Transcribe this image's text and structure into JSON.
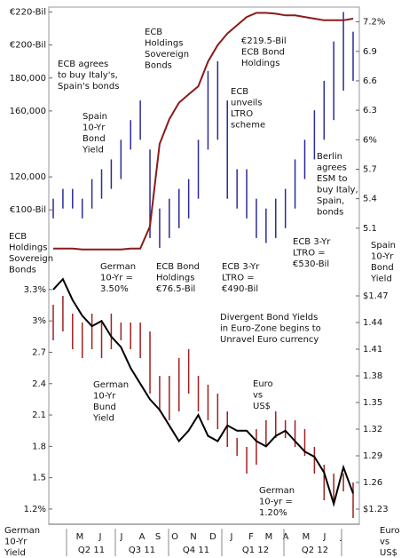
{
  "chart_data": [
    {
      "type": "range_line",
      "ylim": [
        71000,
        223000
      ],
      "yticks": [
        {
          "value": 100000,
          "label": "€100-Bil"
        },
        {
          "value": 120000,
          "label": "120,000"
        },
        {
          "value": 160000,
          "label": "160,000"
        },
        {
          "value": 180000,
          "label": "180,000"
        },
        {
          "value": 200000,
          "label": "€200-Bil"
        },
        {
          "value": 220000,
          "label": "€220-Bil"
        }
      ],
      "y2lim": [
        4.8,
        7.35
      ],
      "y2ticks": [
        5.1,
        5.4,
        5.7,
        {
          "value": 6,
          "label": "6%"
        },
        6.3,
        6.6,
        6.9,
        {
          "value": 7.2,
          "label": "7.2%"
        }
      ],
      "series": [
        {
          "color": "#2a2a9a",
          "axis": "y2",
          "lows": [
            5.2,
            5.3,
            5.3,
            5.2,
            5.3,
            5.4,
            5.5,
            5.6,
            5.9,
            6.0,
            5.0,
            4.9,
            5.0,
            5.1,
            5.2,
            5.4,
            5.9,
            6.0,
            5.4,
            5.3,
            5.2,
            5.0,
            4.95,
            5.0,
            5.1,
            5.3,
            5.6,
            5.8,
            6.0,
            6.2,
            6.5,
            6.6
          ],
          "highs": [
            5.4,
            5.5,
            5.5,
            5.4,
            5.6,
            5.7,
            5.8,
            6.0,
            6.2,
            6.4,
            5.9,
            5.3,
            5.4,
            5.5,
            5.6,
            6.0,
            6.7,
            6.8,
            6.4,
            5.7,
            5.7,
            5.4,
            5.3,
            5.4,
            5.5,
            5.8,
            6.0,
            6.3,
            6.6,
            7.0,
            7.3,
            7.1
          ]
        },
        {
          "color": "#8b1a1a",
          "values": [
            76500,
            76500,
            76500,
            76000,
            76000,
            76000,
            76000,
            76000,
            76500,
            76500,
            90000,
            140000,
            155000,
            165000,
            170000,
            175000,
            190000,
            200000,
            207000,
            212000,
            217000,
            219500,
            219500,
            219000,
            218000,
            218000,
            217000,
            216000,
            215000,
            215000,
            215000,
            216000
          ]
        }
      ]
    },
    {
      "type": "range_line",
      "ylim": [
        0.885,
        3.52
      ],
      "yticks": [
        {
          "value": 1.2,
          "label": "1.2%"
        },
        1.5,
        1.8,
        2.1,
        2.4,
        2.7,
        {
          "value": 3,
          "label": "3%"
        },
        {
          "value": 3.3,
          "label": "3.3%"
        }
      ],
      "y2lim": [
        1.193,
        1.503
      ],
      "y2ticks": [
        {
          "value": 1.23,
          "label": "$1.23"
        },
        1.26,
        1.29,
        1.32,
        1.35,
        1.38,
        1.41,
        1.44,
        {
          "value": 1.47,
          "label": "$1.47"
        }
      ],
      "series": [
        {
          "color": "#a02020",
          "axis": "y2",
          "lows": [
            1.42,
            1.43,
            1.41,
            1.4,
            1.41,
            1.4,
            1.41,
            1.42,
            1.41,
            1.4,
            1.36,
            1.34,
            1.33,
            1.34,
            1.36,
            1.34,
            1.33,
            1.32,
            1.3,
            1.29,
            1.27,
            1.28,
            1.3,
            1.31,
            1.31,
            1.3,
            1.29,
            1.27,
            1.24,
            1.24,
            1.25,
            1.22
          ],
          "highs": [
            1.46,
            1.47,
            1.45,
            1.44,
            1.45,
            1.44,
            1.45,
            1.44,
            1.44,
            1.44,
            1.43,
            1.38,
            1.38,
            1.4,
            1.41,
            1.38,
            1.37,
            1.36,
            1.34,
            1.31,
            1.3,
            1.32,
            1.33,
            1.34,
            1.33,
            1.33,
            1.32,
            1.3,
            1.28,
            1.27,
            1.27,
            1.26
          ]
        },
        {
          "color": "#000000",
          "values": [
            3.3,
            3.4,
            3.2,
            3.05,
            2.95,
            3.0,
            2.85,
            2.75,
            2.55,
            2.4,
            2.25,
            2.15,
            2.0,
            1.85,
            1.95,
            2.1,
            1.9,
            1.85,
            2.0,
            1.95,
            1.95,
            1.85,
            1.8,
            1.9,
            1.95,
            1.85,
            1.75,
            1.7,
            1.55,
            1.25,
            1.6,
            1.35
          ]
        }
      ]
    }
  ],
  "months": [
    "M",
    "J",
    "J",
    "A",
    "S",
    "O",
    "N",
    "D",
    "J",
    "F",
    "M",
    "A",
    "M",
    "J",
    "J"
  ],
  "quarters": [
    "Q2 11",
    "Q3 11",
    "Q4 11",
    "Q1 12",
    "Q2 12"
  ],
  "annotations": [
    {
      "lines": [
        "€219.5-Bil",
        "ECB Bond",
        "Holdings"
      ]
    },
    {
      "lines": [
        "ECB",
        "Holdings",
        "Sovereign",
        "Bonds"
      ]
    },
    {
      "lines": [
        "ECB agrees",
        "to buy Italy's,",
        "Spain's bonds"
      ]
    },
    {
      "lines": [
        "Spain",
        "10-Yr",
        "Bond",
        "Yield"
      ]
    },
    {
      "lines": [
        "ECB",
        "unveils",
        "LTRO",
        "scheme"
      ]
    },
    {
      "lines": [
        "Berlin",
        "agrees",
        "ESM to",
        "buy Italy,",
        "Spain,",
        "bonds"
      ]
    },
    {
      "lines": [
        "ECB",
        "Holdings",
        "Sovereign",
        "Bonds"
      ]
    },
    {
      "lines": [
        "German",
        "10-Yr =",
        "3.50%"
      ]
    },
    {
      "lines": [
        "ECB Bond",
        "Holdings",
        "€76.5-Bil"
      ]
    },
    {
      "lines": [
        "ECB 3-Yr",
        "LTRO =",
        "€490-Bil"
      ]
    },
    {
      "lines": [
        "ECB 3-Yr",
        "LTRO =",
        "€530-Bil"
      ]
    },
    {
      "lines": [
        "Spain",
        "10-Yr",
        "Bond",
        "Yield"
      ]
    },
    {
      "lines": [
        "Divergent Bond Yields",
        "in Euro-Zone begins to",
        "Unravel Euro currency"
      ]
    },
    {
      "lines": [
        "German",
        "10-Yr",
        "Bund",
        "Yield"
      ]
    },
    {
      "lines": [
        "Euro",
        "vs",
        "US$"
      ]
    },
    {
      "lines": [
        "German",
        "10-yr =",
        "1.20%"
      ]
    },
    {
      "lines": [
        "German",
        "10-Yr",
        "Yield"
      ]
    },
    {
      "lines": [
        "Euro",
        "vs",
        "US$"
      ]
    }
  ]
}
